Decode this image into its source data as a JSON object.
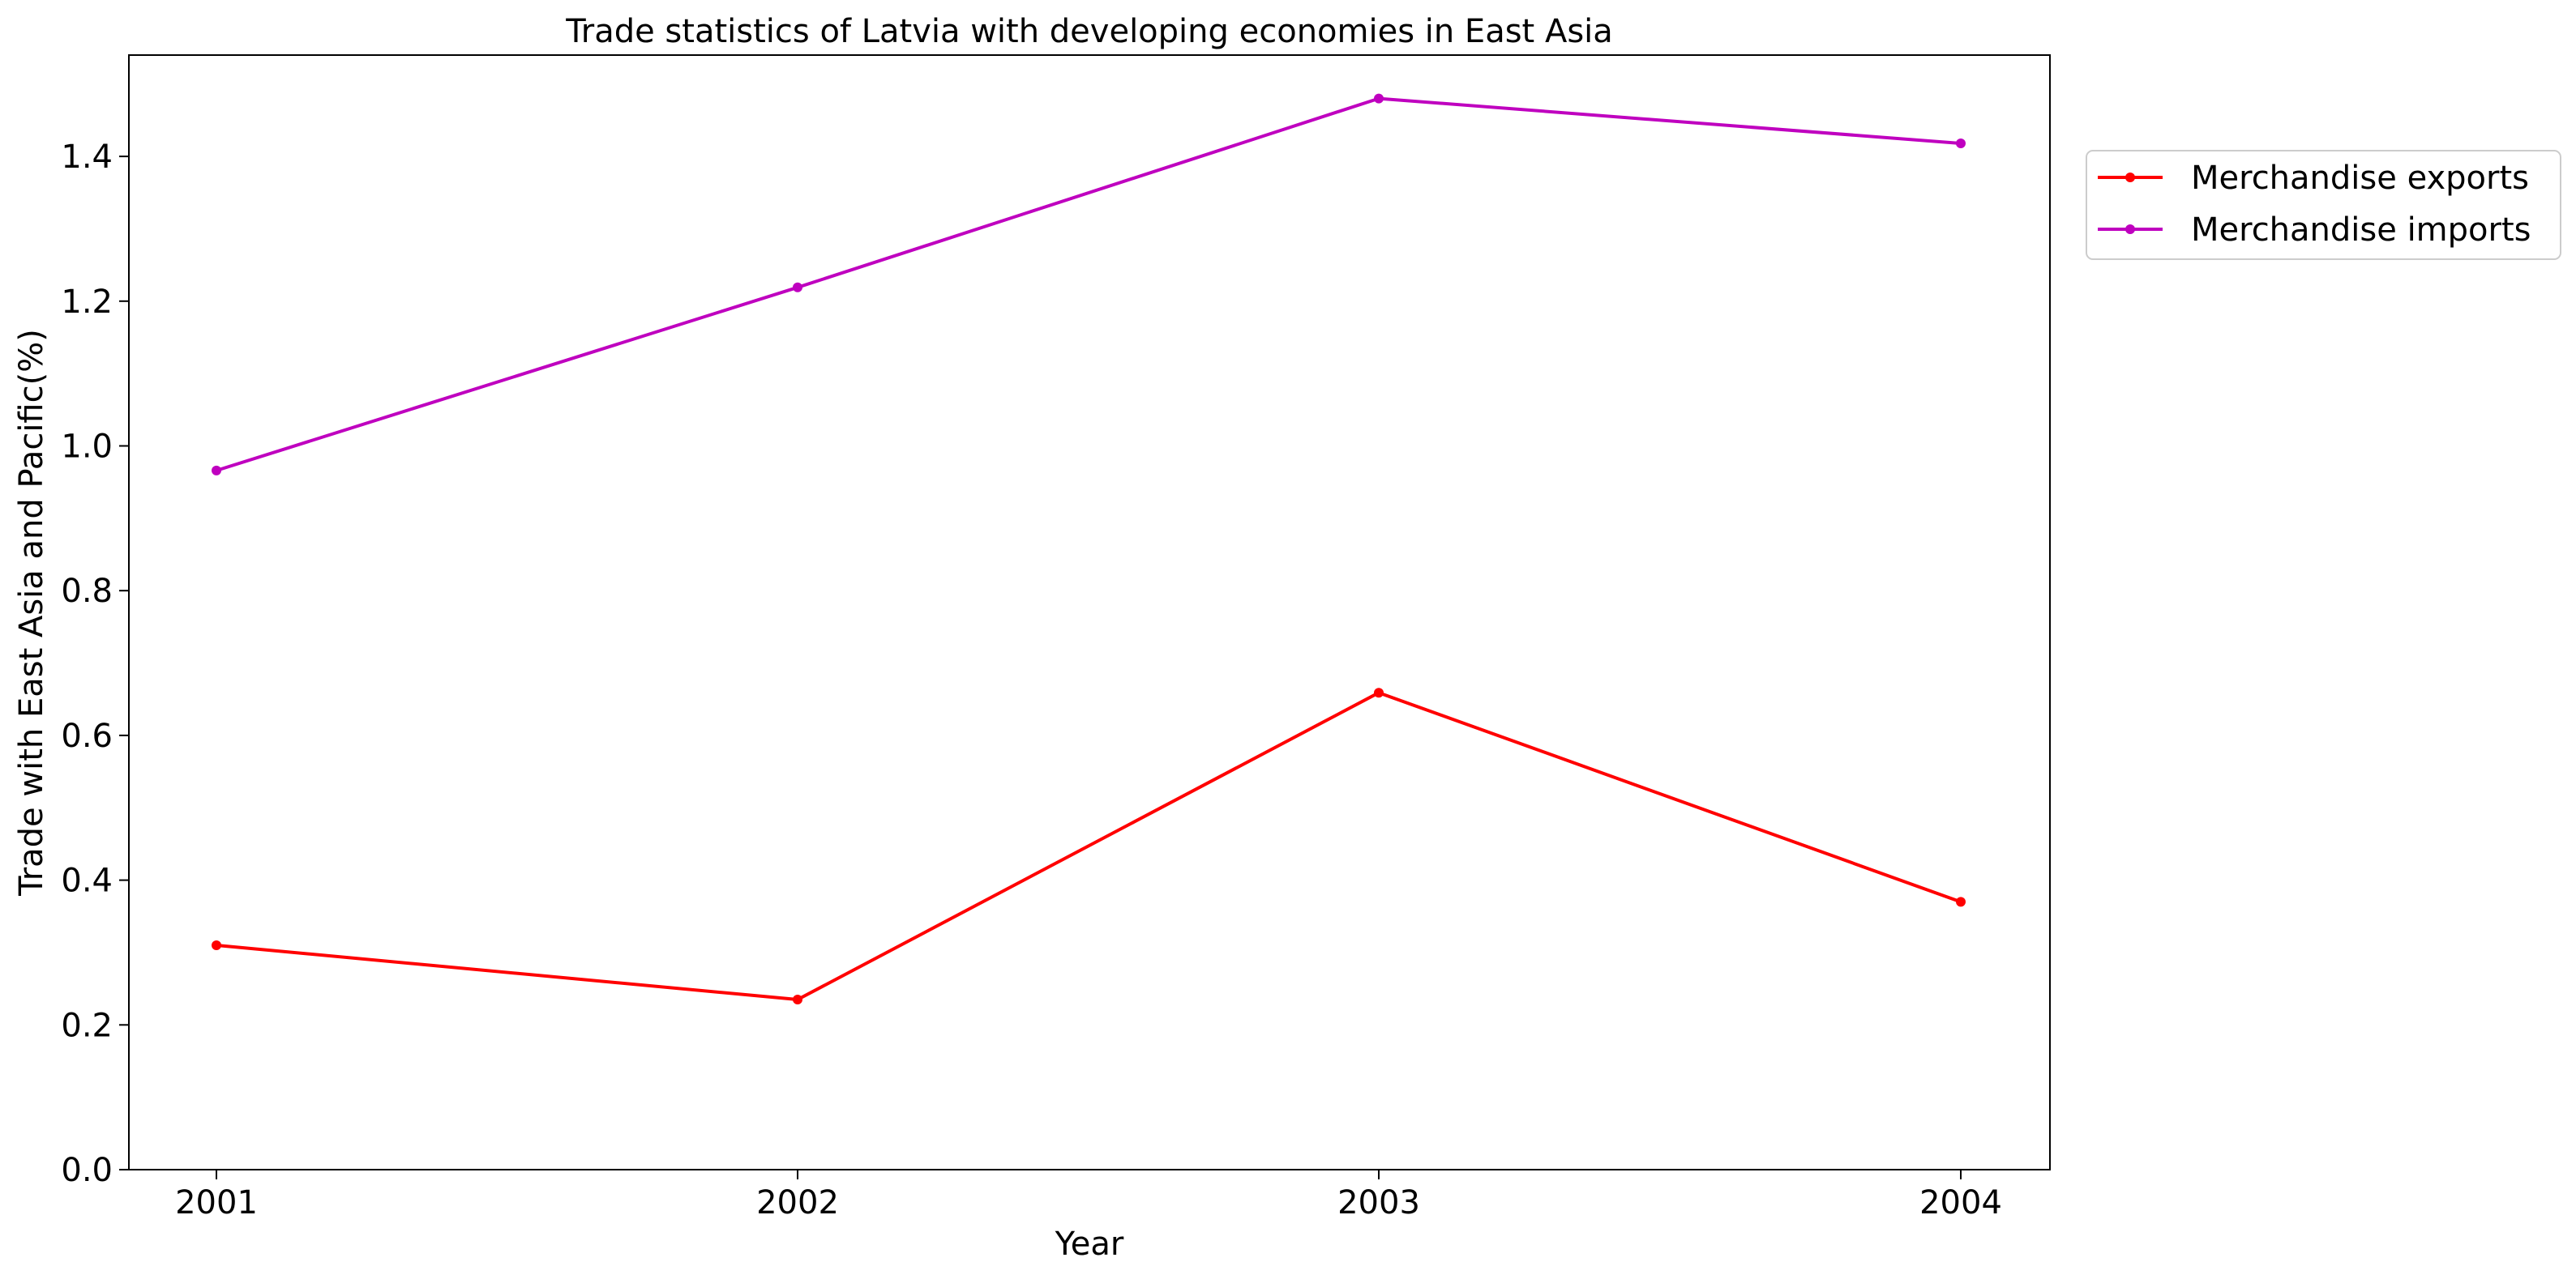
{
  "chart_data": {
    "type": "line",
    "title": "Trade statistics of Latvia with developing economies in East Asia",
    "xlabel": "Year",
    "ylabel": "Trade with East Asia and Pacific(%)",
    "categories": [
      "2001",
      "2002",
      "2003",
      "2004"
    ],
    "series": [
      {
        "name": "Merchandise exports",
        "color": "#ff0000",
        "values": [
          0.31,
          0.235,
          0.659,
          0.37
        ]
      },
      {
        "name": "Merchandise imports",
        "color": "#bf00bf",
        "values": [
          0.966,
          1.219,
          1.48,
          1.418
        ]
      }
    ],
    "ylim": [
      0,
      1.54
    ],
    "yticks": [
      0.0,
      0.2,
      0.4,
      0.6,
      0.8,
      1.0,
      1.2,
      1.4
    ],
    "ytick_labels": [
      "0.0",
      "0.2",
      "0.4",
      "0.6",
      "0.8",
      "1.0",
      "1.2",
      "1.4"
    ],
    "grid": false,
    "legend_position": "outside top-right",
    "markers": "dot"
  }
}
